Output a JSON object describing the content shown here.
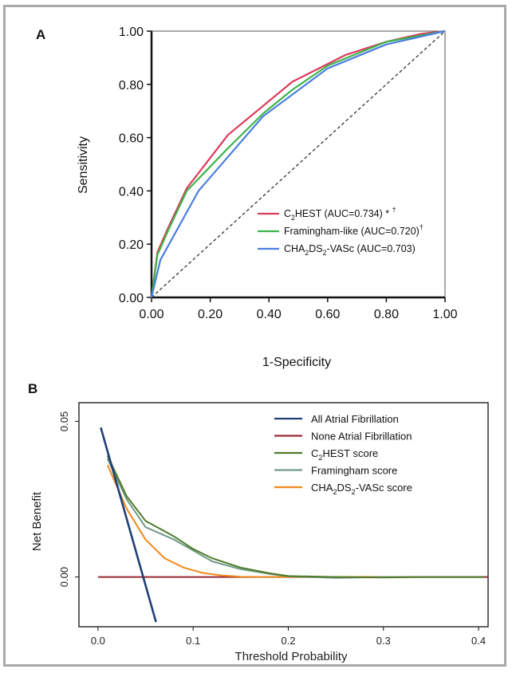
{
  "panels": {
    "a": {
      "label": "A"
    },
    "b": {
      "label": "B"
    }
  },
  "colors": {
    "c2hest": "#dc3b5a",
    "framingham_like": "#3bb44a",
    "cha2ds2": "#4a7fe0",
    "diagonal": "#333333",
    "all_af": "#1f3f78",
    "none_af": "#9c2a32",
    "c2hest_b": "#4f7b2a",
    "framingham_b": "#6f9a86",
    "cha2ds2_b": "#f08a1e"
  },
  "chart_data": [
    {
      "type": "line",
      "panel": "A",
      "xlabel": "1-Specificity",
      "ylabel": "Sensitivity",
      "xlim": [
        0,
        1
      ],
      "ylim": [
        0,
        1
      ],
      "xticks": [
        "0.00",
        "0.20",
        "0.40",
        "0.60",
        "0.80",
        "1.00"
      ],
      "yticks": [
        "0.00",
        "0.20",
        "0.40",
        "0.60",
        "0.80",
        "1.00"
      ],
      "legend_position": "lower-right",
      "series": [
        {
          "name": "C2HEST (AUC=0.734) * †",
          "legend_main": "C",
          "legend_sub": "2",
          "legend_rest": "HEST (AUC=0.734) * ",
          "legend_sup": "†",
          "color": "#dc3b5a",
          "x": [
            0,
            0.02,
            0.06,
            0.12,
            0.26,
            0.48,
            0.66,
            0.8,
            0.92,
            1.0
          ],
          "y": [
            0,
            0.17,
            0.27,
            0.41,
            0.61,
            0.81,
            0.91,
            0.96,
            0.99,
            1.0
          ]
        },
        {
          "name": "Framingham-like (AUC=0.720) †",
          "legend_main": "Framingham-like (AUC=0.720)",
          "legend_sub": "",
          "legend_rest": "",
          "legend_sup": "†",
          "color": "#3bb44a",
          "x": [
            0,
            0.02,
            0.06,
            0.12,
            0.26,
            0.38,
            0.48,
            0.6,
            0.8,
            1.0
          ],
          "y": [
            0,
            0.16,
            0.26,
            0.4,
            0.56,
            0.69,
            0.78,
            0.87,
            0.96,
            1.0
          ]
        },
        {
          "name": "CHA2DS2-VASc (AUC=0.703)",
          "legend_main": "CHA",
          "legend_sub": "2",
          "legend_rest": "DS",
          "legend_sub2": "2",
          "legend_tail": "-VASc (AUC=0.703)",
          "legend_sup": "",
          "color": "#4a7fe0",
          "x": [
            0,
            0.03,
            0.16,
            0.38,
            0.6,
            0.8,
            1.0
          ],
          "y": [
            0,
            0.14,
            0.4,
            0.68,
            0.86,
            0.95,
            1.0
          ]
        }
      ]
    },
    {
      "type": "line",
      "panel": "B",
      "xlabel": "Threshold Probability",
      "ylabel": "Net Benefit",
      "xlim": [
        -0.02,
        0.41
      ],
      "ylim": [
        -0.016,
        0.056
      ],
      "xticks": [
        "0.0",
        "0.1",
        "0.2",
        "0.3",
        "0.4"
      ],
      "yticks": [
        "0.00",
        "0.05"
      ],
      "legend_position": "top-right",
      "series": [
        {
          "name": "All Atrial Fibrillation",
          "color": "#1f3f78",
          "x": [
            0.003,
            0.061
          ],
          "y": [
            0.048,
            -0.0145
          ]
        },
        {
          "name": "None Atrial Fibrillation",
          "color": "#9c2a32",
          "x": [
            0.0,
            0.41
          ],
          "y": [
            0.0,
            0.0
          ]
        },
        {
          "name": "C2HEST score",
          "color": "#4f7b2a",
          "x": [
            0.01,
            0.03,
            0.05,
            0.08,
            0.1,
            0.12,
            0.15,
            0.18,
            0.2,
            0.25,
            0.3,
            0.34,
            0.405
          ],
          "y": [
            0.039,
            0.026,
            0.018,
            0.013,
            0.009,
            0.006,
            0.003,
            0.0012,
            0.0003,
            0.0,
            -0.0002,
            0.0,
            0.0
          ]
        },
        {
          "name": "Framingham score",
          "color": "#6f9a86",
          "x": [
            0.01,
            0.03,
            0.05,
            0.08,
            0.1,
            0.12,
            0.15,
            0.18,
            0.2,
            0.25,
            0.3,
            0.34,
            0.405
          ],
          "y": [
            0.038,
            0.025,
            0.016,
            0.012,
            0.0085,
            0.005,
            0.0025,
            0.001,
            0.0002,
            -0.0003,
            0.0,
            0.0,
            0.0
          ]
        },
        {
          "name": "CHA2DS2-VASc score",
          "color": "#f08a1e",
          "x": [
            0.01,
            0.03,
            0.05,
            0.07,
            0.09,
            0.11,
            0.13,
            0.15,
            0.18,
            0.22,
            0.28,
            0.34
          ],
          "y": [
            0.036,
            0.022,
            0.012,
            0.006,
            0.003,
            0.0013,
            0.0005,
            0.0001,
            0.0,
            0.0,
            0.0,
            0.0
          ]
        }
      ],
      "legend": [
        {
          "main": "All Atrial Fibrillation",
          "sub": "",
          "rest": "",
          "sub2": "",
          "tail": ""
        },
        {
          "main": "None Atrial Fibrillation",
          "sub": "",
          "rest": "",
          "sub2": "",
          "tail": ""
        },
        {
          "main": "C",
          "sub": "2",
          "rest": "HEST score",
          "sub2": "",
          "tail": ""
        },
        {
          "main": "Framingham score",
          "sub": "",
          "rest": "",
          "sub2": "",
          "tail": ""
        },
        {
          "main": "CHA",
          "sub": "2",
          "rest": "DS",
          "sub2": "2",
          "tail": "-VASc score"
        }
      ]
    }
  ]
}
